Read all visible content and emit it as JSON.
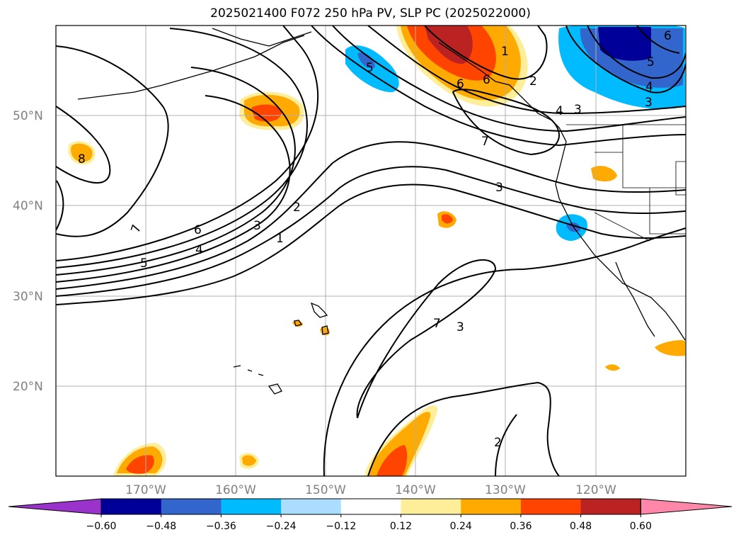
{
  "title": "2025021400 F072 250 hPa PV, SLP PC (2025022000)",
  "map": {
    "lat_labels": [
      "50°N",
      "40°N",
      "30°N",
      "20°N"
    ],
    "lon_labels": [
      "170°W",
      "160°W",
      "150°W",
      "140°W",
      "130°W",
      "120°W"
    ],
    "contour_labels": [
      "8",
      "7",
      "6",
      "5",
      "4",
      "3",
      "2",
      "1",
      "5",
      "6",
      "7",
      "1",
      "2",
      "3",
      "4",
      "3",
      "6",
      "5",
      "4",
      "3",
      "6",
      "7",
      "3",
      "2",
      "1",
      "1"
    ]
  },
  "colorbar": {
    "ticks": [
      "−0.60",
      "−0.48",
      "−0.36",
      "−0.24",
      "−0.12",
      "0.12",
      "0.24",
      "0.36",
      "0.48",
      "0.60"
    ],
    "colors": [
      "#9933cc",
      "#000099",
      "#3366cc",
      "#00bbff",
      "#aaddff",
      "#ffffff",
      "#ffee99",
      "#ffaa00",
      "#ff4400",
      "#bb2222",
      "#ff88aa"
    ]
  }
}
